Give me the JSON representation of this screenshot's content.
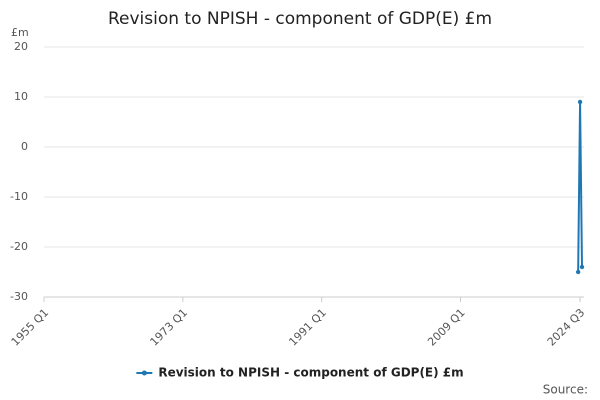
{
  "chart_data": {
    "type": "line",
    "title": "Revision to NPISH - component of GDP(E) £m",
    "y_unit": "£m",
    "source": "Source:",
    "categories": [
      "1955 Q1",
      null,
      null,
      null,
      null,
      null,
      null,
      null,
      null,
      null,
      null,
      null,
      null,
      null,
      null,
      null,
      null,
      null,
      null,
      null,
      null,
      null,
      null,
      null,
      null,
      null,
      null,
      null,
      null,
      null,
      null,
      null,
      null,
      null,
      null,
      null,
      null,
      null,
      null,
      null,
      null,
      null,
      null,
      null,
      null,
      null,
      null,
      null,
      null,
      null,
      null,
      null,
      null,
      null,
      null,
      null,
      null,
      null,
      null,
      null,
      null,
      null,
      null,
      null,
      null,
      null,
      null,
      null,
      null,
      null,
      null,
      null,
      "1973 Q1",
      null,
      null,
      null,
      null,
      null,
      null,
      null,
      null,
      null,
      null,
      null,
      null,
      null,
      null,
      null,
      null,
      null,
      null,
      null,
      null,
      null,
      null,
      null,
      null,
      null,
      null,
      null,
      null,
      null,
      null,
      null,
      null,
      null,
      null,
      null,
      null,
      null,
      null,
      null,
      null,
      null,
      null,
      null,
      null,
      null,
      null,
      null,
      null,
      null,
      null,
      null,
      null,
      null,
      null,
      null,
      null,
      null,
      null,
      null,
      null,
      null,
      null,
      null,
      null,
      null,
      null,
      null,
      null,
      null,
      null,
      null,
      "1991 Q1",
      null,
      null,
      null,
      null,
      null,
      null,
      null,
      null,
      null,
      null,
      null,
      null,
      null,
      null,
      null,
      null,
      null,
      null,
      null,
      null,
      null,
      null,
      null,
      null,
      null,
      null,
      null,
      null,
      null,
      null,
      null,
      null,
      null,
      null,
      null,
      null,
      null,
      null,
      null,
      null,
      null,
      null,
      null,
      null,
      null,
      null,
      null,
      null,
      null,
      null,
      null,
      null,
      null,
      null,
      null,
      null,
      null,
      null,
      null,
      null,
      null,
      null,
      null,
      null,
      null,
      null,
      null,
      null,
      null,
      null,
      null,
      "2009 Q1",
      null,
      null,
      null,
      null,
      null,
      null,
      null,
      null,
      null,
      null,
      null,
      null,
      null,
      null,
      null,
      null,
      null,
      null,
      null,
      null,
      null,
      null,
      null,
      null,
      null,
      null,
      null,
      null,
      null,
      null,
      null,
      null,
      null,
      null,
      null,
      null,
      null,
      null,
      null,
      null,
      null,
      null,
      null,
      null,
      null,
      null,
      null,
      null,
      null,
      null,
      null,
      null,
      null,
      null,
      null,
      null,
      null,
      null,
      null,
      null,
      null,
      "2024 Q3",
      null
    ],
    "series": [
      {
        "name": "Revision to NPISH - component of GDP(E) £m",
        "color": "#1f78b4",
        "values": [
          null,
          null,
          null,
          null,
          null,
          null,
          null,
          null,
          null,
          null,
          null,
          null,
          null,
          null,
          null,
          null,
          null,
          null,
          null,
          null,
          null,
          null,
          null,
          null,
          null,
          null,
          null,
          null,
          null,
          null,
          null,
          null,
          null,
          null,
          null,
          null,
          null,
          null,
          null,
          null,
          null,
          null,
          null,
          null,
          null,
          null,
          null,
          null,
          null,
          null,
          null,
          null,
          null,
          null,
          null,
          null,
          null,
          null,
          null,
          null,
          null,
          null,
          null,
          null,
          null,
          null,
          null,
          null,
          null,
          null,
          null,
          null,
          null,
          null,
          null,
          null,
          null,
          null,
          null,
          null,
          null,
          null,
          null,
          null,
          null,
          null,
          null,
          null,
          null,
          null,
          null,
          null,
          null,
          null,
          null,
          null,
          null,
          null,
          null,
          null,
          null,
          null,
          null,
          null,
          null,
          null,
          null,
          null,
          null,
          null,
          null,
          null,
          null,
          null,
          null,
          null,
          null,
          null,
          null,
          null,
          null,
          null,
          null,
          null,
          null,
          null,
          null,
          null,
          null,
          null,
          null,
          null,
          null,
          null,
          null,
          null,
          null,
          null,
          null,
          null,
          null,
          null,
          null,
          null,
          null,
          null,
          null,
          null,
          null,
          null,
          null,
          null,
          null,
          null,
          null,
          null,
          null,
          null,
          null,
          null,
          null,
          null,
          null,
          null,
          null,
          null,
          null,
          null,
          null,
          null,
          null,
          null,
          null,
          null,
          null,
          null,
          null,
          null,
          null,
          null,
          null,
          null,
          null,
          null,
          null,
          null,
          null,
          null,
          null,
          null,
          null,
          null,
          null,
          null,
          null,
          null,
          null,
          null,
          null,
          null,
          null,
          null,
          null,
          null,
          null,
          null,
          null,
          null,
          null,
          null,
          null,
          null,
          null,
          null,
          null,
          null,
          null,
          null,
          null,
          null,
          null,
          null,
          null,
          null,
          null,
          null,
          null,
          null,
          null,
          null,
          null,
          null,
          null,
          null,
          null,
          null,
          null,
          null,
          null,
          null,
          null,
          null,
          null,
          null,
          null,
          null,
          null,
          null,
          null,
          null,
          null,
          null,
          null,
          null,
          null,
          null,
          null,
          null,
          null,
          null,
          null,
          null,
          null,
          null,
          null,
          null,
          null,
          null,
          null,
          null,
          null,
          null,
          null,
          null,
          null,
          null,
          null,
          -25,
          9,
          -24
        ]
      }
    ],
    "ylim": [
      -30,
      20
    ],
    "yticks": [
      -30,
      -20,
      -10,
      0,
      10,
      20
    ],
    "grid": true
  }
}
